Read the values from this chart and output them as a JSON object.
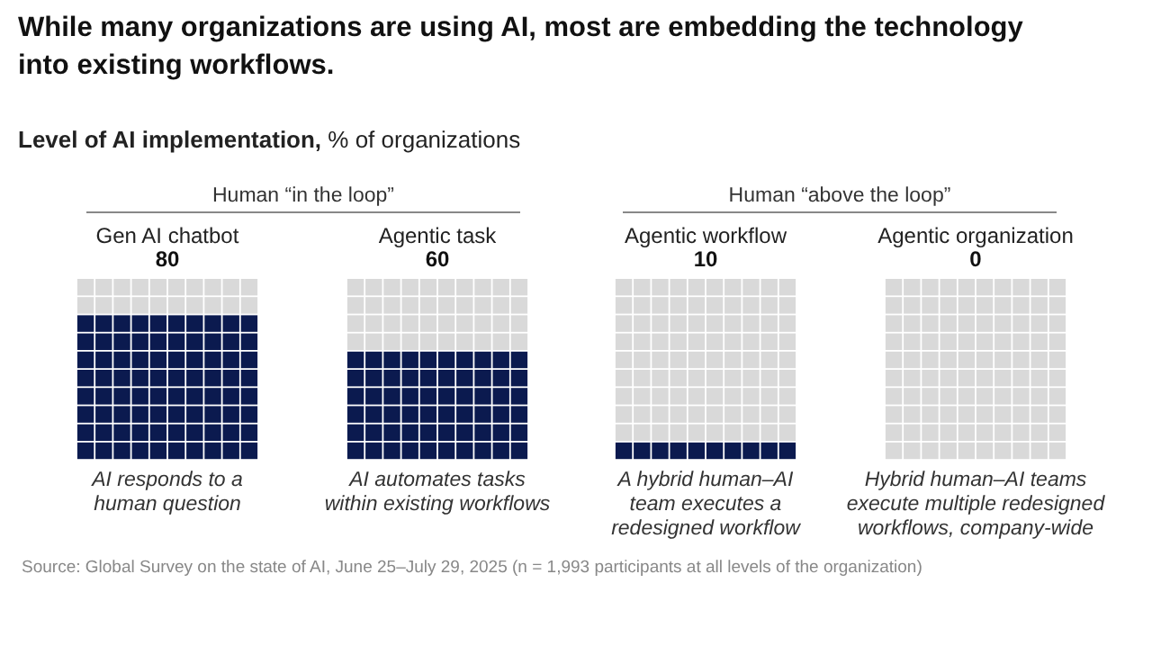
{
  "chart_data": {
    "type": "other",
    "title": "While many organizations are using AI, most are embedding the technology into existing workflows.",
    "subtitle": "Level of AI implementation,",
    "ylabel": "% of organizations",
    "categories": [
      "Gen AI chatbot",
      "Agentic task",
      "Agentic workflow",
      "Agentic organization"
    ],
    "values": [
      80,
      60,
      10,
      0
    ],
    "colors": [
      "#0b1a4f",
      "#0b1a4f",
      "#0b1a4f",
      "#0b1a4f"
    ],
    "data_labels": true,
    "annotations": [
      "Human “in the loop”",
      "Human “above the loop”",
      "AI responds to a\nhuman question",
      "AI automates tasks\nwithin existing workflows",
      "A hybrid human–AI\nteam executes a\nredesigned workflow",
      "Hybrid human–AI teams\nexecute multiple redesigned\nworkflows, company-wide",
      "Source: Global Survey on the state of AI, June 25–July 29, 2025 (n = 1,993 participants at all levels of the organization)"
    ]
  }
}
